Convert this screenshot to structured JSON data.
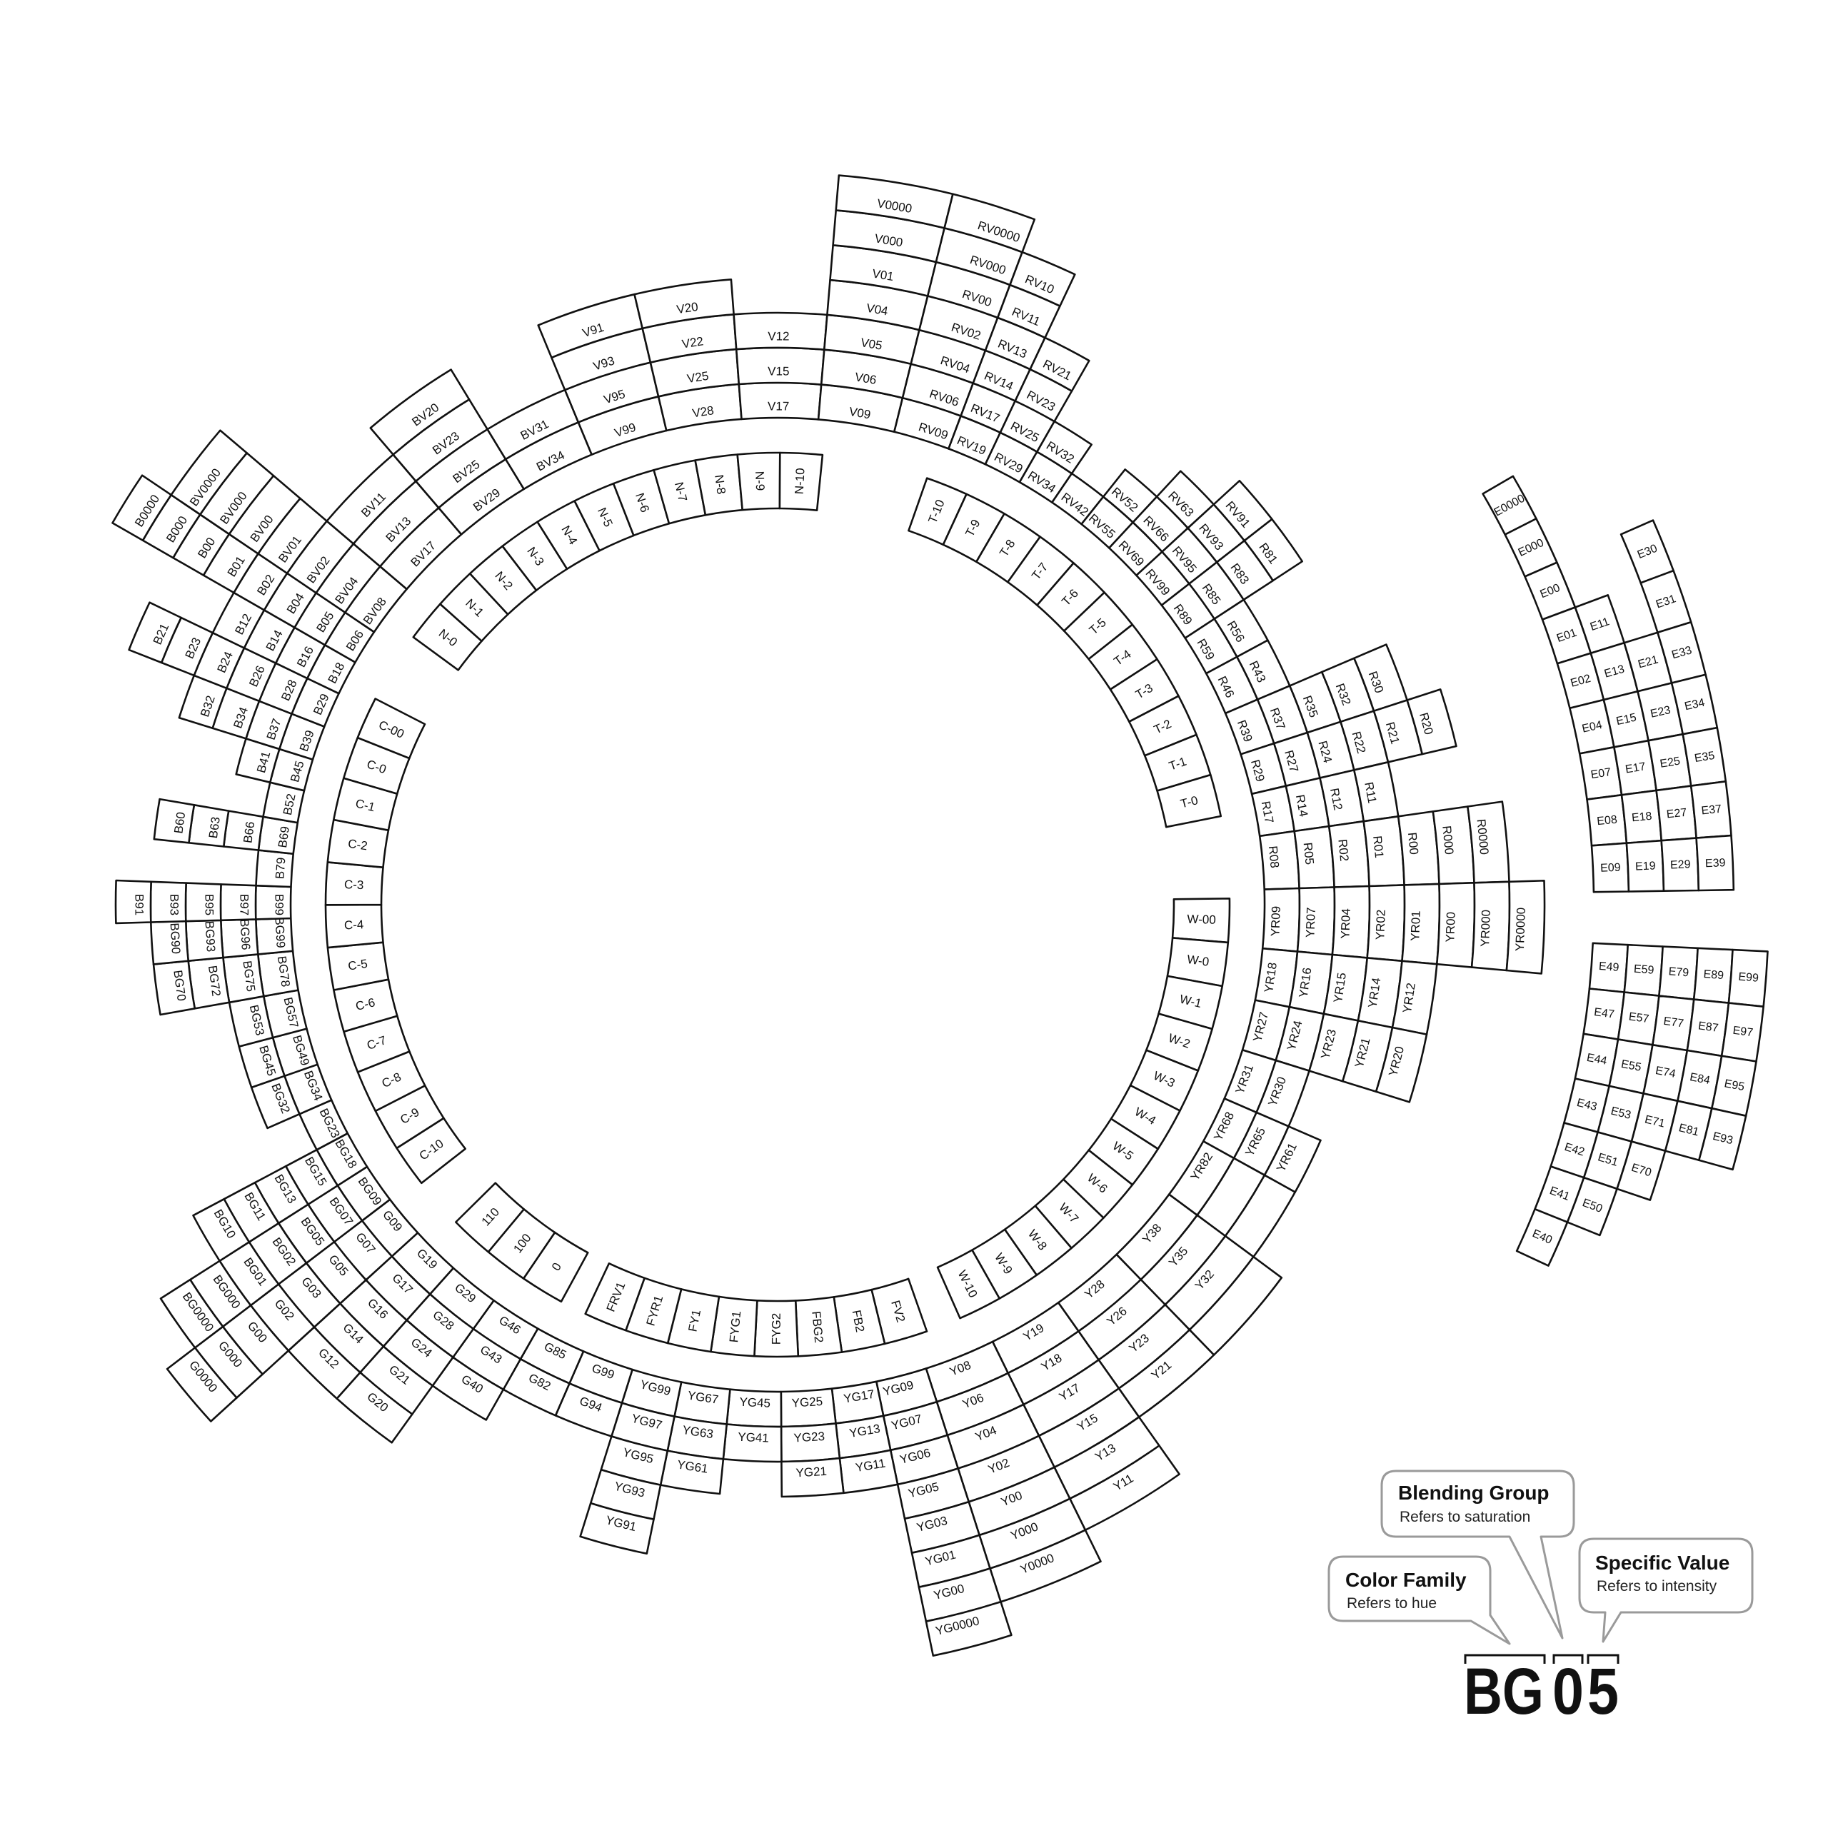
{
  "wheel": {
    "main_ring": [
      [
        "V99",
        "V95",
        "V93",
        "V91"
      ],
      [
        "V28",
        "V25",
        "V22",
        "V20"
      ],
      [
        "V17",
        "V15",
        "V12"
      ],
      [
        "V09",
        "V06",
        "V05",
        "V04",
        "V01",
        "V000",
        "V0000"
      ],
      [
        "RV09",
        "RV06",
        "RV04",
        "RV02",
        "RV00",
        "RV000",
        "RV0000"
      ],
      [
        "RV19",
        "RV17",
        "RV14",
        "RV13",
        "RV11",
        "RV10"
      ],
      [
        "RV29",
        "RV25",
        "RV23",
        "RV21"
      ],
      [
        "RV34",
        "RV32"
      ],
      [
        "RV42"
      ],
      [
        "RV55",
        "RV52"
      ],
      [
        "RV69",
        "RV66",
        "RV63"
      ],
      [
        "RV99",
        "RV95",
        "RV93",
        "RV91"
      ],
      [
        "R89",
        "R85",
        "R83",
        "R81"
      ],
      [
        "R59",
        "R56"
      ],
      [
        "R46",
        "R43"
      ],
      [
        "R39",
        "R37",
        "R35",
        "R32",
        "R30"
      ],
      [
        "R29",
        "R27",
        "R24",
        "R22",
        "R21",
        "R20"
      ],
      [
        "R17",
        "R14",
        "R12",
        "R11"
      ],
      [
        "R08",
        "R05",
        "R02",
        "R01",
        "R00",
        "R000",
        "R0000"
      ],
      [
        "YR09",
        "YR07",
        "YR04",
        "YR02",
        "YR01",
        "YR00",
        "YR000",
        "YR0000"
      ],
      [
        "YR18",
        "YR16",
        "YR15",
        "YR14",
        "YR12"
      ],
      [
        "YR27",
        "YR24",
        "YR23",
        "YR21",
        "YR20"
      ],
      [
        "YR31",
        "YR30"
      ],
      [
        "YR68",
        "YR65",
        "YR61"
      ],
      [
        "YR82",
        "",
        ""
      ],
      [
        "Y38",
        "Y35",
        "Y32",
        ""
      ],
      [
        "Y28",
        "Y26",
        "Y23",
        "Y21"
      ],
      [
        "Y19",
        "Y18",
        "Y17",
        "Y15",
        "Y13",
        "Y11"
      ],
      [
        "Y08",
        "Y06",
        "Y04",
        "Y02",
        "Y00",
        "Y000",
        "Y0000"
      ],
      [
        "YG09",
        "YG07",
        "YG06",
        "YG05",
        "YG03",
        "YG01",
        "YG00",
        "YG0000"
      ],
      [
        "YG17",
        "YG13",
        "YG11"
      ],
      [
        "YG25",
        "YG23",
        "YG21"
      ],
      [
        "YG45",
        "YG41"
      ],
      [
        "YG67",
        "YG63",
        "YG61"
      ],
      [
        "YG99",
        "YG97",
        "YG95",
        "YG93",
        "YG91"
      ],
      [
        "G99",
        "G94"
      ],
      [
        "G85",
        "G82"
      ],
      [
        "G46",
        "G43",
        "G40"
      ],
      [
        "G29",
        "G28",
        "G24",
        "G21",
        "G20"
      ],
      [
        "G19",
        "G17",
        "G16",
        "G14",
        "G12"
      ],
      [
        "G09",
        "G07",
        "G05",
        "G03",
        "G02",
        "G00",
        "G000",
        "G0000"
      ],
      [
        "BG09",
        "BG07",
        "BG05",
        "BG02",
        "BG01",
        "BG000",
        "BG0000"
      ],
      [
        "BG18",
        "BG15",
        "BG13",
        "BG11",
        "BG10"
      ],
      [
        "BG23"
      ],
      [
        "BG34",
        "BG32"
      ],
      [
        "BG49",
        "BG45"
      ],
      [
        "BG57",
        "BG53"
      ],
      [
        "BG78",
        "BG75",
        "BG72",
        "BG70"
      ],
      [
        "BG99",
        "BG96",
        "BG93",
        "BG90"
      ],
      [
        "B99",
        "B97",
        "B95",
        "B93",
        "B91"
      ],
      [
        "B79"
      ],
      [
        "B69",
        "B66",
        "B63",
        "B60"
      ],
      [
        "B52"
      ],
      [
        "B45",
        "B41"
      ],
      [
        "B39",
        "B37",
        "B34",
        "B32"
      ],
      [
        "B29",
        "B28",
        "B26",
        "B24",
        "B23",
        "B21"
      ],
      [
        "B18",
        "B16",
        "B14",
        "B12"
      ],
      [
        "B06",
        "B05",
        "B04",
        "B02",
        "B01",
        "B00",
        "B000",
        "B0000"
      ],
      [
        "BV08",
        "BV04",
        "BV02",
        "BV01",
        "BV00",
        "BV000",
        "BV0000"
      ],
      [
        "BV17",
        "BV13",
        "BV11"
      ],
      [
        "BV29",
        "BV25",
        "BV23",
        "BV20"
      ],
      [
        "BV34",
        "BV31"
      ]
    ],
    "inner_ring": {
      "C": [
        "C-10",
        "C-9",
        "C-8",
        "C-7",
        "C-6",
        "C-5",
        "C-4",
        "C-3",
        "C-2",
        "C-1",
        "C-0",
        "C-00"
      ],
      "N": [
        "N-0",
        "N-1",
        "N-2",
        "N-3",
        "N-4",
        "N-5",
        "N-6",
        "N-7",
        "N-8",
        "N-9",
        "N-10"
      ],
      "T": [
        "T-10",
        "T-9",
        "T-8",
        "T-7",
        "T-6",
        "T-5",
        "T-4",
        "T-3",
        "T-2",
        "T-1",
        "T-0"
      ],
      "W": [
        "W-00",
        "W-0",
        "W-1",
        "W-2",
        "W-3",
        "W-4",
        "W-5",
        "W-6",
        "W-7",
        "W-8",
        "W-9",
        "W-10"
      ],
      "F": [
        "FV2",
        "FB2",
        "FBG2",
        "FYG2",
        "FYG1",
        "FY1",
        "FYR1",
        "FRV1"
      ],
      "numeric": [
        "0",
        "100",
        "110"
      ]
    },
    "e_upper": [
      [
        "E0000",
        "E000",
        "E00",
        "E01",
        "E02",
        "E04",
        "E07",
        "E08",
        "E09"
      ],
      [
        null,
        null,
        null,
        "E11",
        "E13",
        "E15",
        "E17",
        "E18",
        "E19"
      ],
      [
        null,
        null,
        null,
        null,
        "E21",
        "E23",
        "E25",
        "E27",
        "E29"
      ],
      [
        null,
        null,
        "E30",
        "E31",
        "E33",
        "E34",
        "E35",
        "E37",
        "E39"
      ]
    ],
    "e_lower": [
      [
        "E49",
        "E47",
        "E44",
        "E43",
        "E42",
        "E41",
        "E40"
      ],
      [
        "E59",
        "E57",
        "E55",
        "E53",
        "E51",
        "E50"
      ],
      [
        "E79",
        "E77",
        "E74",
        "E71",
        "E70"
      ],
      [
        "E89",
        "E87",
        "E84",
        "E81"
      ],
      [
        "E99",
        "E97",
        "E95",
        "E93"
      ]
    ]
  },
  "legend": {
    "color_family": {
      "title": "Color Family",
      "subtitle": "Refers to hue"
    },
    "blending_group": {
      "title": "Blending Group",
      "subtitle": "Refers to saturation"
    },
    "specific_value": {
      "title": "Specific Value",
      "subtitle": "Refers to intensity"
    },
    "example": {
      "family": "BG",
      "group": "0",
      "value": "5"
    }
  },
  "colors": {
    "outline": "#111111",
    "bubble_border": "#9a9a9a",
    "background": "#ffffff"
  }
}
